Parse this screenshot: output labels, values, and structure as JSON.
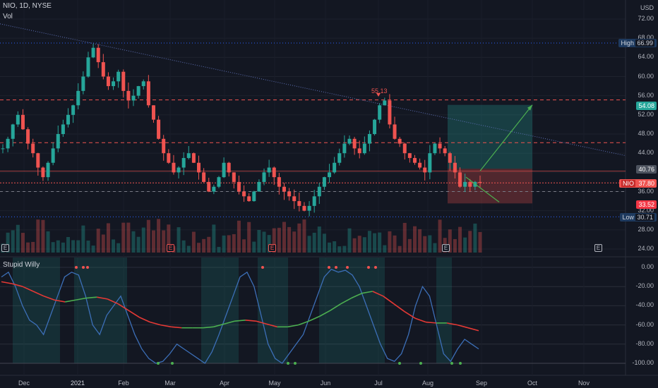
{
  "header": {
    "symbol": "NIO, 1D, NYSE",
    "vol_label": "Vol",
    "currency": "USD"
  },
  "indicator": {
    "name": "Stupid Willy"
  },
  "price_axis": {
    "ticks": [
      "72.00",
      "68.00",
      "64.00",
      "60.00",
      "56.00",
      "52.00",
      "48.00",
      "44.00",
      "40.00",
      "36.00",
      "32.00",
      "28.00",
      "24.00"
    ],
    "min": 24,
    "max": 72
  },
  "osc_axis": {
    "ticks": [
      "0.00",
      "-20.00",
      "-40.00",
      "-60.00",
      "-80.00",
      "-100.00"
    ],
    "min": -100,
    "max": 0
  },
  "price_tags": {
    "high_label": "High",
    "high_value": "66.99",
    "target": "54.08",
    "current_gray": "40.76",
    "symbol_tag": "NIO",
    "last": "37.80",
    "stop": "33.52",
    "low_label": "Low",
    "low_value": "30.71",
    "peak_label": "55.13"
  },
  "x_axis": {
    "labels": [
      "Dec",
      "2021",
      "Feb",
      "Mar",
      "Apr",
      "May",
      "Jun",
      "Jul",
      "Aug",
      "Sep",
      "Oct",
      "Nov"
    ]
  },
  "events": {
    "glyph": "E"
  },
  "chart_data": {
    "type": "candlestick",
    "title": "NIO, 1D, NYSE",
    "y_range": [
      24,
      72
    ],
    "levels": {
      "high": 66.99,
      "low": 30.71,
      "peak": 55.13,
      "last": 37.8,
      "target": 54.08,
      "stop": 33.52
    },
    "close_series": [
      45,
      47,
      50,
      52,
      49,
      46,
      44,
      41,
      39,
      42,
      45,
      48,
      50,
      52,
      54,
      57,
      60,
      64,
      66,
      63,
      60,
      58,
      59,
      61,
      57,
      55,
      56,
      58,
      59,
      54,
      51,
      47,
      44,
      42,
      40,
      41,
      43,
      44,
      42,
      40,
      38,
      36,
      37,
      39,
      42,
      40,
      38,
      36,
      35,
      34,
      36,
      38,
      40,
      41,
      39,
      37,
      36,
      35,
      34,
      33,
      32,
      33,
      35,
      37,
      39,
      40,
      42,
      44,
      46,
      47,
      45,
      44,
      46,
      48,
      51,
      54,
      55,
      50,
      47,
      46,
      44,
      43,
      42,
      41,
      40,
      44,
      46,
      45,
      44,
      42,
      40,
      37,
      38,
      37,
      38,
      37.8
    ],
    "oscillator": {
      "name": "Stupid Willy",
      "range": [
        -100,
        0
      ],
      "fast": [
        -10,
        -5,
        -20,
        -40,
        -55,
        -60,
        -70,
        -50,
        -30,
        -10,
        -5,
        -8,
        -30,
        -60,
        -70,
        -50,
        -40,
        -30,
        -50,
        -70,
        -85,
        -95,
        -100,
        -98,
        -90,
        -80,
        -85,
        -90,
        -95,
        -100,
        -88,
        -70,
        -50,
        -30,
        -10,
        -5,
        -20,
        -50,
        -80,
        -95,
        -100,
        -90,
        -80,
        -70,
        -50,
        -30,
        -10,
        -2,
        -5,
        -3,
        -8,
        -20,
        -40,
        -60,
        -80,
        -95,
        -98,
        -90,
        -70,
        -40,
        -20,
        -30,
        -60,
        -90,
        -98,
        -85,
        -75,
        -80,
        -85
      ],
      "slow": [
        -15,
        -17,
        -20,
        -25,
        -30,
        -34,
        -36,
        -34,
        -32,
        -31,
        -33,
        -38,
        -45,
        -52,
        -57,
        -60,
        -62,
        -63,
        -63,
        -63,
        -62,
        -59,
        -56,
        -55,
        -56,
        -59,
        -62,
        -62,
        -60,
        -56,
        -51,
        -45,
        -38,
        -32,
        -27,
        -25,
        -30,
        -38,
        -46,
        -53,
        -57,
        -58,
        -58,
        -60,
        -63,
        -66
      ]
    }
  }
}
